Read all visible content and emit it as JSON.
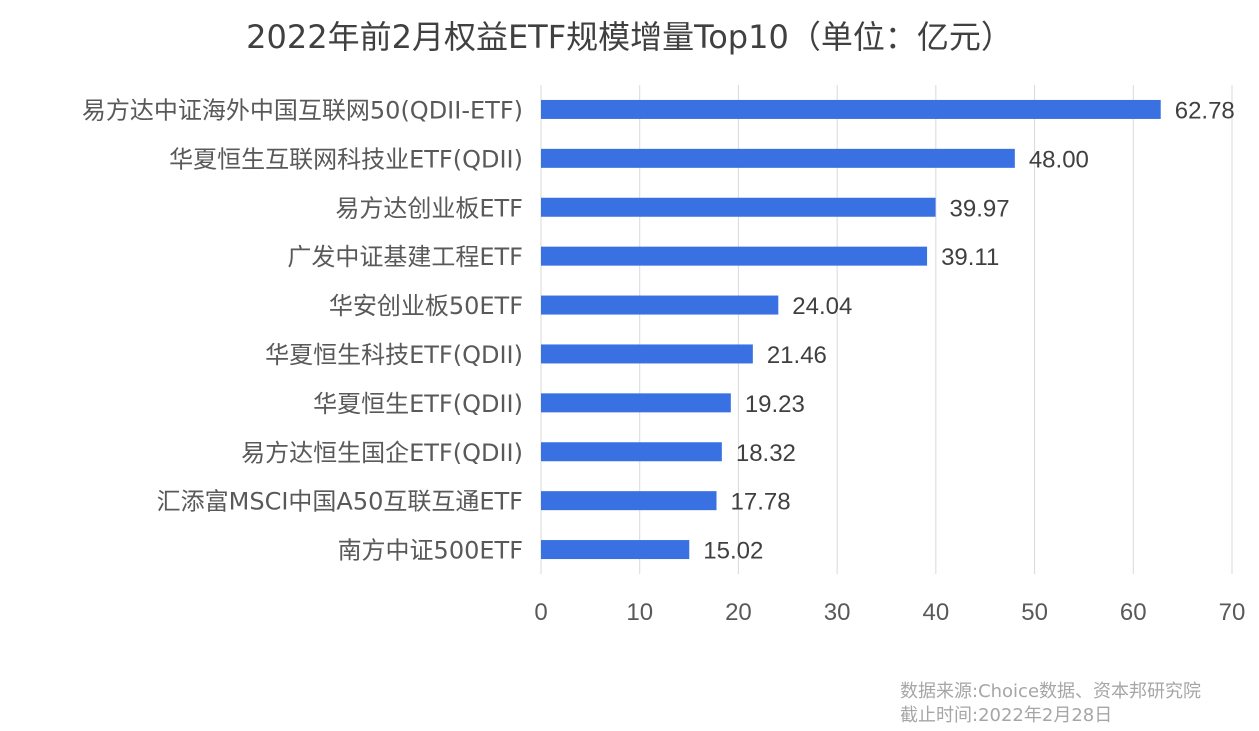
{
  "chart_data": {
    "type": "bar",
    "orientation": "horizontal",
    "title": "2022年前2月权益ETF规模增量Top10（单位：亿元）",
    "categories": [
      "易方达中证海外中国互联网50(QDII-ETF)",
      "华夏恒生互联网科技业ETF(QDII)",
      "易方达创业板ETF",
      "广发中证基建工程ETF",
      "华安创业板50ETF",
      "华夏恒生科技ETF(QDII)",
      "华夏恒生ETF(QDII)",
      "易方达恒生国企ETF(QDII)",
      "汇添富MSCI中国A50互联互通ETF",
      "南方中证500ETF"
    ],
    "values": [
      62.78,
      48.0,
      39.97,
      39.11,
      24.04,
      21.46,
      19.23,
      18.32,
      17.78,
      15.02
    ],
    "value_labels": [
      "62.78",
      "48.00",
      "39.97",
      "39.11",
      "24.04",
      "21.46",
      "19.23",
      "18.32",
      "17.78",
      "15.02"
    ],
    "xlim": [
      0,
      70
    ],
    "xticks": [
      "0",
      "10",
      "20",
      "30",
      "40",
      "50",
      "60",
      "70"
    ],
    "grid": "vertical",
    "bar_color": "#3a71e2"
  },
  "footer": {
    "source": "数据来源:Choice数据、资本邦研究院",
    "date": "截止时间:2022年2月28日"
  }
}
